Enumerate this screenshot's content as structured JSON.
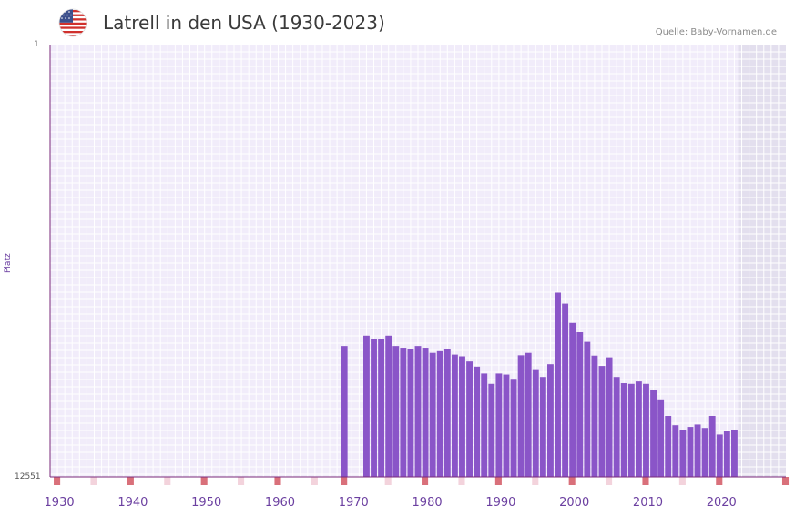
{
  "header": {
    "title": "Latrell in den USA (1930-2023)",
    "source": "Quelle: Baby-Vornamen.de",
    "flag_icon": "usa-flag-icon"
  },
  "colors": {
    "bar": "#8a55c8",
    "plot_bg": "#f1ecfa",
    "grid": "#ffffff",
    "future_bg": "#e3dfee",
    "axis": "#7a2a7a",
    "tick_label": "#6b3fa0",
    "marker_strong": "#d9707a",
    "marker_light": "#f3d3dc"
  },
  "chart_data": {
    "type": "bar",
    "title": "Latrell in den USA (1930-2023)",
    "xlabel": "",
    "ylabel": "Platz",
    "y_inverted": true,
    "ylim": [
      1,
      12551
    ],
    "y_tick_labels": [
      "1",
      "12551"
    ],
    "xlim": [
      1929,
      2029
    ],
    "x_tick_labels": [
      "1930",
      "1940",
      "1950",
      "1960",
      "1970",
      "1980",
      "1990",
      "2000",
      "2010",
      "2020"
    ],
    "future_shading_from": 2022.5,
    "x": [
      1969,
      1972,
      1973,
      1974,
      1975,
      1976,
      1977,
      1978,
      1979,
      1980,
      1981,
      1982,
      1983,
      1984,
      1985,
      1986,
      1987,
      1988,
      1989,
      1990,
      1991,
      1992,
      1993,
      1994,
      1995,
      1996,
      1997,
      1998,
      1999,
      2000,
      2001,
      2002,
      2003,
      2004,
      2005,
      2006,
      2007,
      2008,
      2009,
      2010,
      2011,
      2012,
      2013,
      2014,
      2015,
      2016,
      2017,
      2018,
      2019,
      2020,
      2021,
      2022
    ],
    "values": [
      8750,
      8450,
      8550,
      8550,
      8450,
      8750,
      8800,
      8850,
      8750,
      8800,
      8950,
      8900,
      8850,
      9000,
      9050,
      9200,
      9350,
      9550,
      9850,
      9550,
      9580,
      9730,
      9020,
      8950,
      9450,
      9650,
      9280,
      7200,
      7520,
      8080,
      8350,
      8630,
      9030,
      9330,
      9080,
      9650,
      9830,
      9850,
      9780,
      9850,
      10030,
      10300,
      10780,
      11050,
      11180,
      11100,
      11030,
      11130,
      10780,
      11320,
      11230,
      11180
    ],
    "bottom_markers_strong": [
      1930,
      1940,
      1950,
      1960,
      1969,
      1980,
      1990,
      2000,
      2010,
      2020,
      2029
    ],
    "bottom_markers_light": [
      1935,
      1945,
      1955,
      1965,
      1975,
      1985,
      1995,
      2005,
      2015
    ]
  }
}
